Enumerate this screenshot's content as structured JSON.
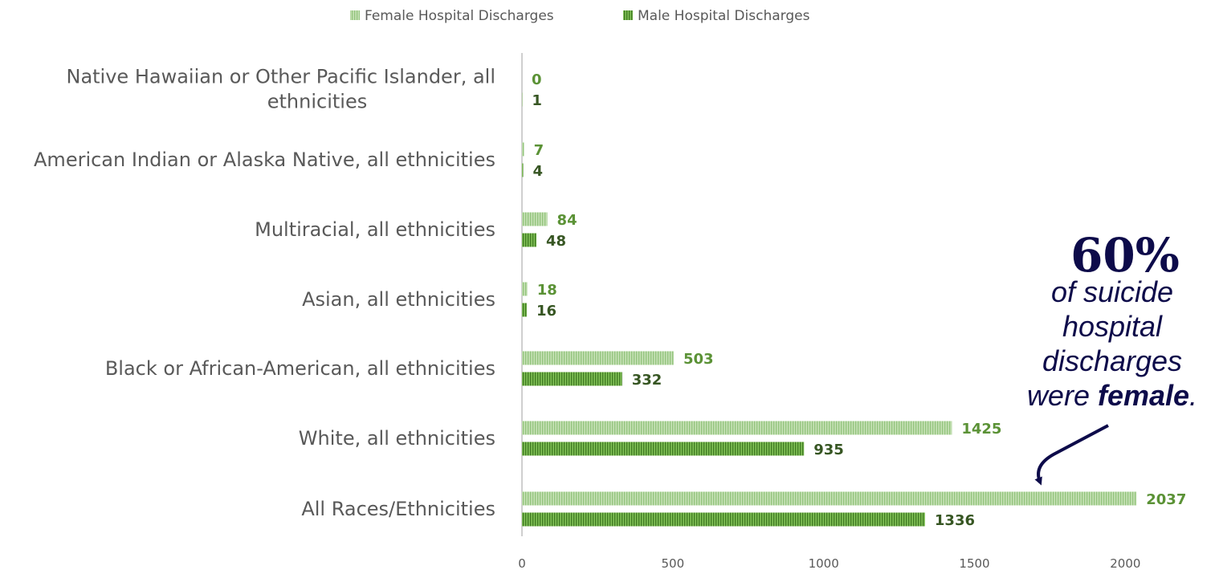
{
  "chart_data": {
    "type": "bar",
    "orientation": "horizontal",
    "categories": [
      [
        "Native Hawaiian or Other Pacific Islander, all",
        "ethnicities"
      ],
      [
        "American Indian or Alaska Native, all ethnicities"
      ],
      [
        "Multiracial, all ethnicities"
      ],
      [
        "Asian, all ethnicities"
      ],
      [
        "Black or African-American, all ethnicities"
      ],
      [
        "White, all ethnicities"
      ],
      [
        "All Races/Ethnicities"
      ]
    ],
    "series": [
      {
        "name": "Female Hospital Discharges",
        "values": [
          0,
          7,
          84,
          18,
          503,
          1425,
          2037
        ],
        "color": "#a9d18e",
        "label_color": "#5b9236"
      },
      {
        "name": "Male Hospital Discharges",
        "values": [
          1,
          4,
          48,
          16,
          332,
          935,
          1336
        ],
        "color": "#70ad47",
        "label_color": "#375623"
      }
    ],
    "xlim": [
      0,
      2500
    ],
    "xticks": [
      0,
      500,
      1000,
      1500,
      2000,
      2500
    ],
    "legend_position": "top",
    "grid": false,
    "annotation": {
      "percent": "60%",
      "lines": [
        "of suicide",
        "hospital",
        "discharges"
      ],
      "last_line_prefix": "were ",
      "last_line_bold": "female",
      "last_line_suffix": ".",
      "color": "#0d0b4a",
      "points_to": "All Races/Ethnicities female bar"
    }
  }
}
